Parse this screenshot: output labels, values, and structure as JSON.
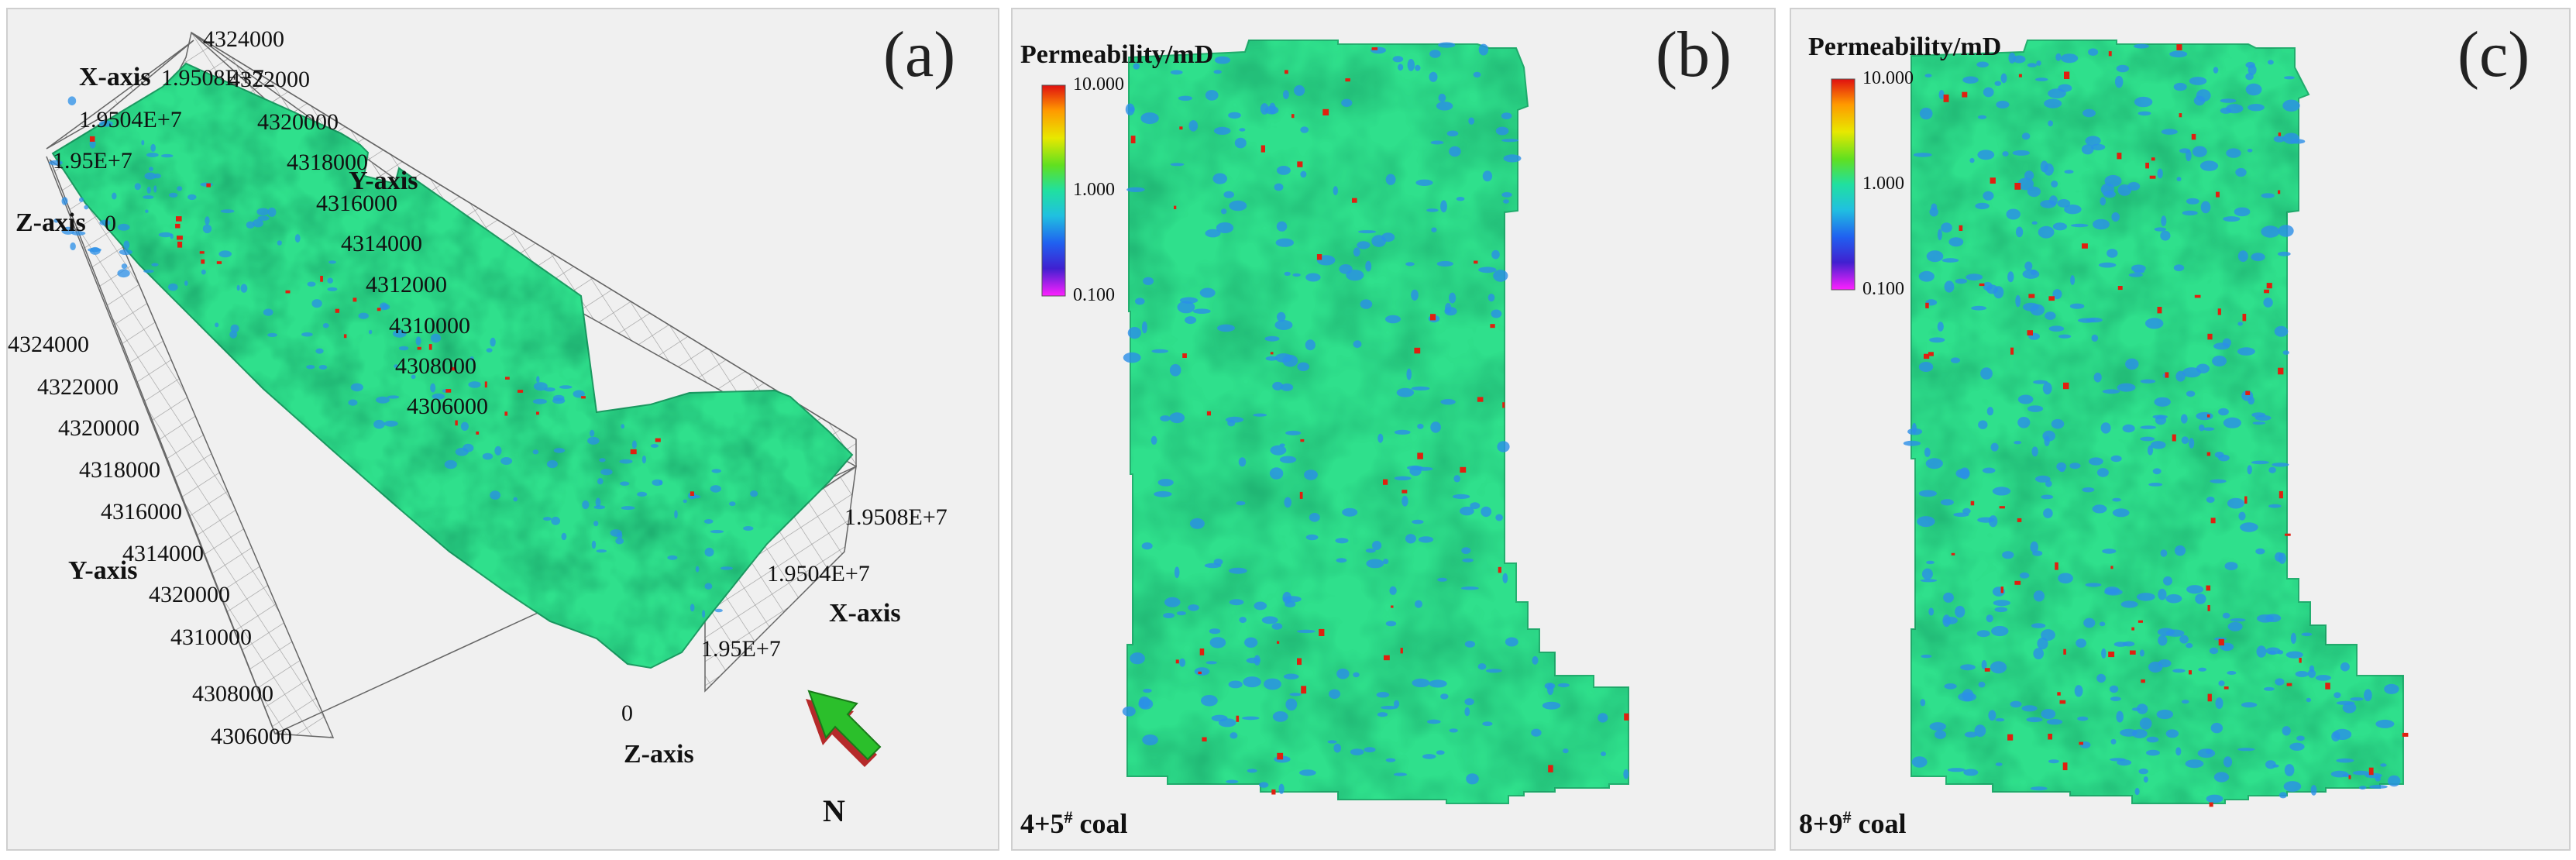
{
  "panels": {
    "a": {
      "letter": "(a)",
      "axes": {
        "x_axis_label": "X-axis",
        "y_axis_label": "Y-axis",
        "z_axis_label": "Z-axis",
        "top_x_ticks": [
          "1.9508E+7",
          "1.9504E+7",
          "1.95E+7"
        ],
        "top_y_ticks": [
          "4324000",
          "4322000",
          "4320000",
          "4318000",
          "4316000",
          "4314000",
          "4312000",
          "4310000",
          "4308000",
          "4306000"
        ],
        "left_y_ticks": [
          "4324000",
          "4322000",
          "4320000",
          "4318000",
          "4316000",
          "4314000"
        ],
        "bottom_y_ticks": [
          "4320000",
          "4310000",
          "4308000",
          "4306000"
        ],
        "right_x_ticks": [
          "1.9508E+7",
          "1.9504E+7",
          "1.95E+7"
        ],
        "z_ticks_top": "0",
        "z_ticks_bottom": "0"
      },
      "north_label": "N"
    },
    "b": {
      "letter": "(b)",
      "colorbar_title": "Permeability/mD",
      "colorbar_ticks": [
        "10.000",
        "1.000",
        "0.100"
      ],
      "coal_prefix": "4+5",
      "coal_sup": "#",
      "coal_suffix": " coal"
    },
    "c": {
      "letter": "(c)",
      "colorbar_title": "Permeability/mD",
      "colorbar_ticks": [
        "10.000",
        "1.000",
        "0.100"
      ],
      "coal_prefix": "8+9",
      "coal_sup": "#",
      "coal_suffix": " coal"
    }
  },
  "colors": {
    "field": "#2fe08c",
    "field_dark": "#27c47a",
    "low_perm": "#2a8fe8",
    "high_perm": "#e02010",
    "north_arrow": "#2bbf2b",
    "north_arrow_side": "#b52a2a"
  }
}
